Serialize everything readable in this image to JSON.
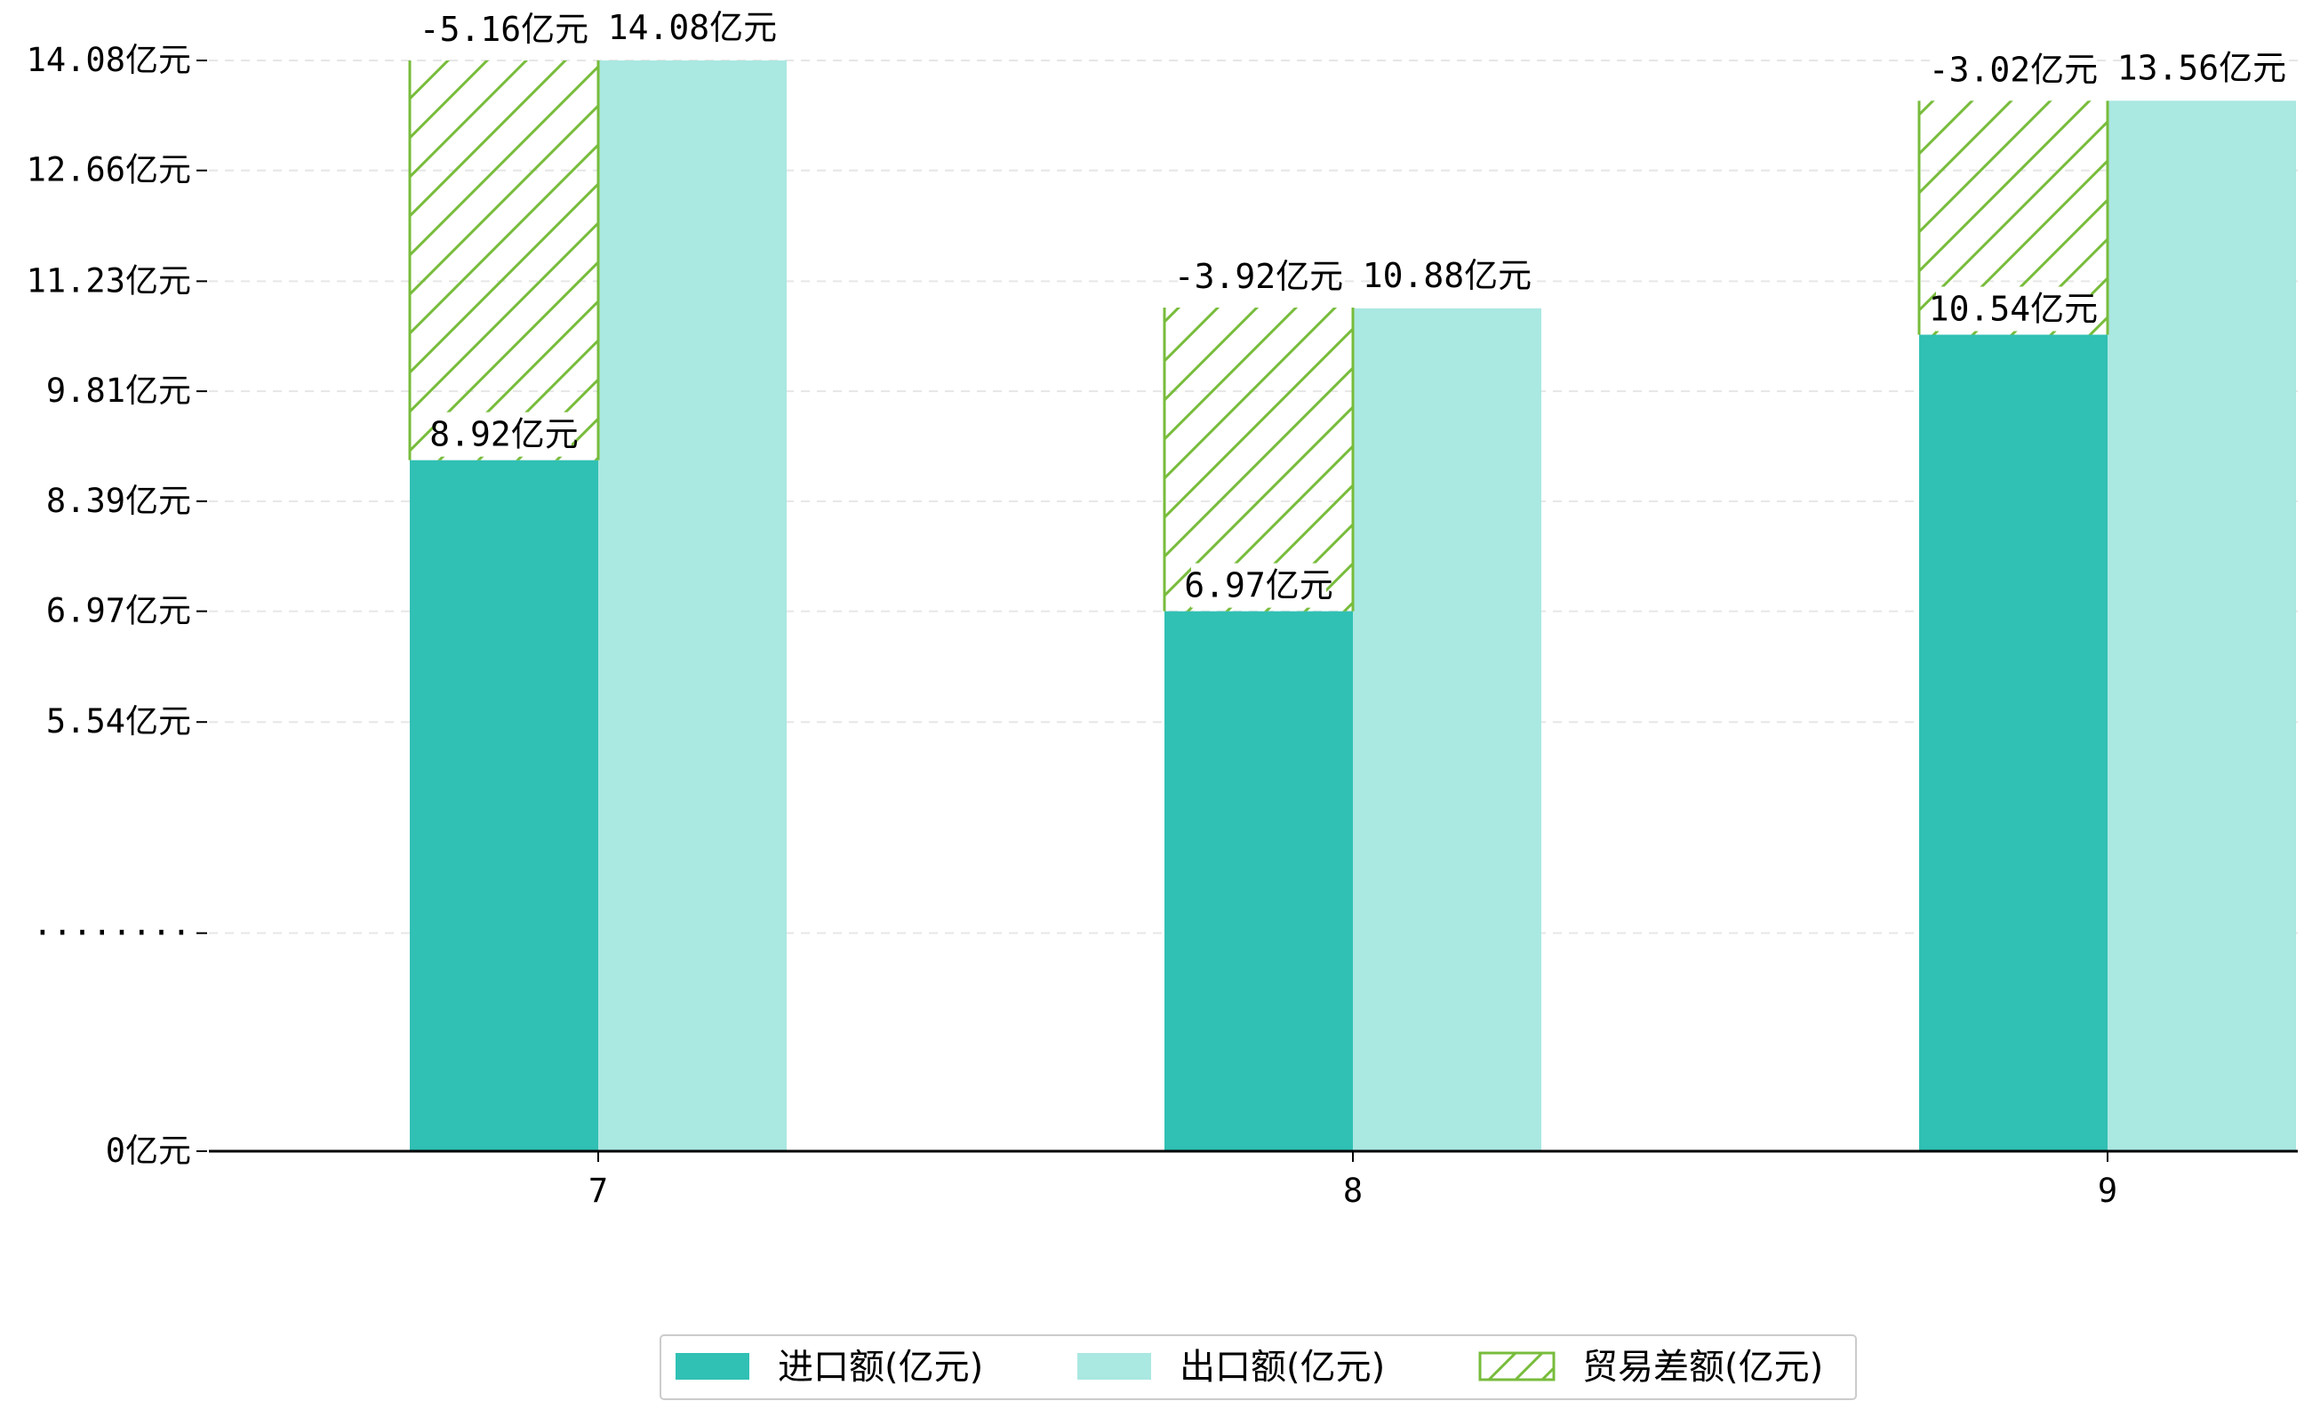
{
  "chart_data": {
    "type": "bar",
    "categories": [
      "7",
      "8",
      "9"
    ],
    "series": [
      {
        "name": "进口额(亿元)",
        "values": [
          8.92,
          6.97,
          10.54
        ],
        "color": "#30c0b4"
      },
      {
        "name": "出口额(亿元)",
        "values": [
          14.08,
          10.88,
          13.56
        ],
        "color": "#aae8e2"
      },
      {
        "name": "贸易差额(亿元)",
        "values": [
          -5.16,
          -3.92,
          -3.02
        ],
        "color": "#78bc3c",
        "style": "hatched"
      }
    ],
    "value_labels": {
      "import": [
        "8.92亿元",
        "6.97亿元",
        "10.54亿元"
      ],
      "export": [
        "14.08亿元",
        "10.88亿元",
        "13.56亿元"
      ],
      "diff": [
        "-5.16亿元",
        "-3.92亿元",
        "-3.02亿元"
      ]
    },
    "y_ticks": [
      {
        "value": 0,
        "label": "0亿元"
      },
      {
        "value": 2.815,
        "label": "········"
      },
      {
        "value": 5.54,
        "label": "5.54亿元"
      },
      {
        "value": 6.97,
        "label": "6.97亿元"
      },
      {
        "value": 8.39,
        "label": "8.39亿元"
      },
      {
        "value": 9.81,
        "label": "9.81亿元"
      },
      {
        "value": 11.23,
        "label": "11.23亿元"
      },
      {
        "value": 12.66,
        "label": "12.66亿元"
      },
      {
        "value": 14.08,
        "label": "14.08亿元"
      }
    ],
    "y_axis_break": true,
    "grid": true,
    "legend_position": "bottom-center",
    "legend": [
      "进口额(亿元)",
      "出口额(亿元)",
      "贸易差额(亿元)"
    ]
  }
}
